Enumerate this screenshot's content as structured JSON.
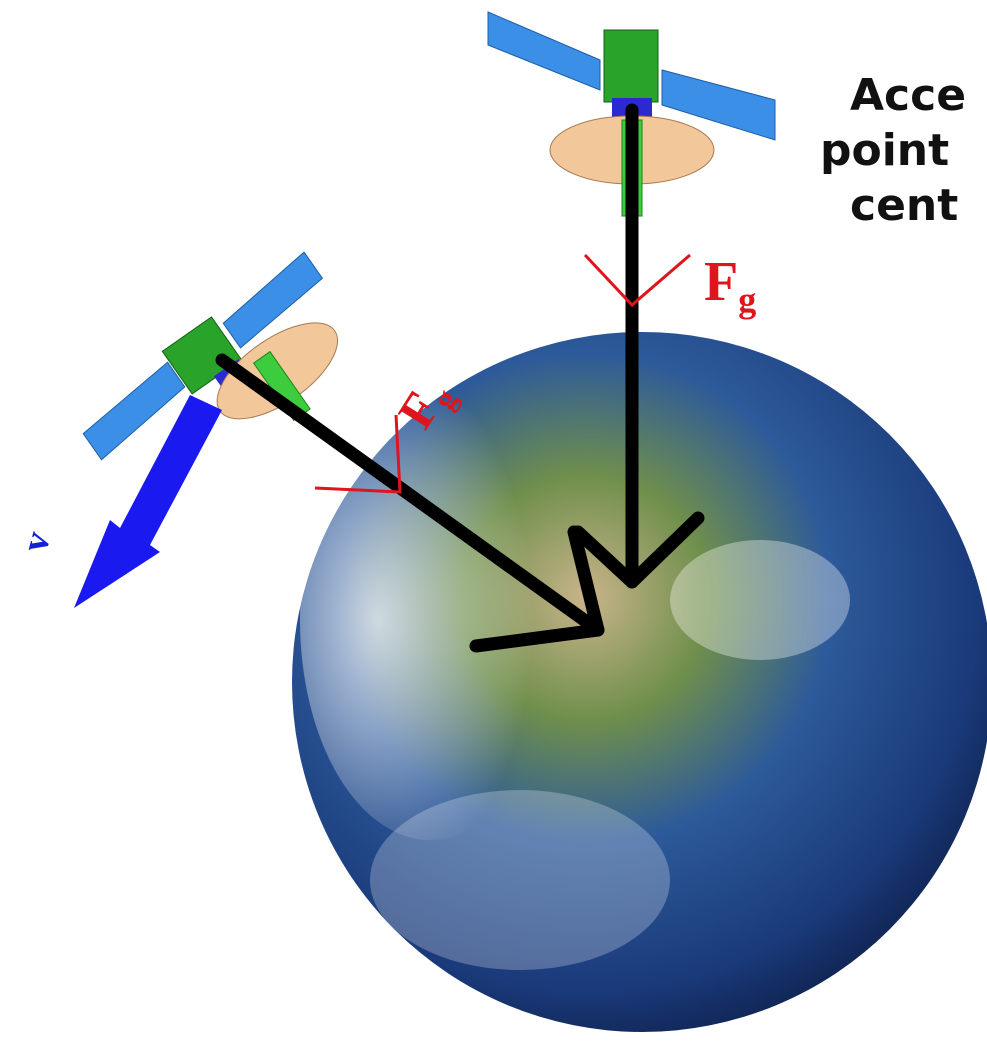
{
  "caption": {
    "lines": [
      "Acce",
      "point",
      "cent"
    ]
  },
  "force_top": {
    "symbol": "F",
    "subscript": "g"
  },
  "force_left": {
    "symbol": "F",
    "subscript": "g"
  },
  "velocity": {
    "symbol": "v"
  }
}
